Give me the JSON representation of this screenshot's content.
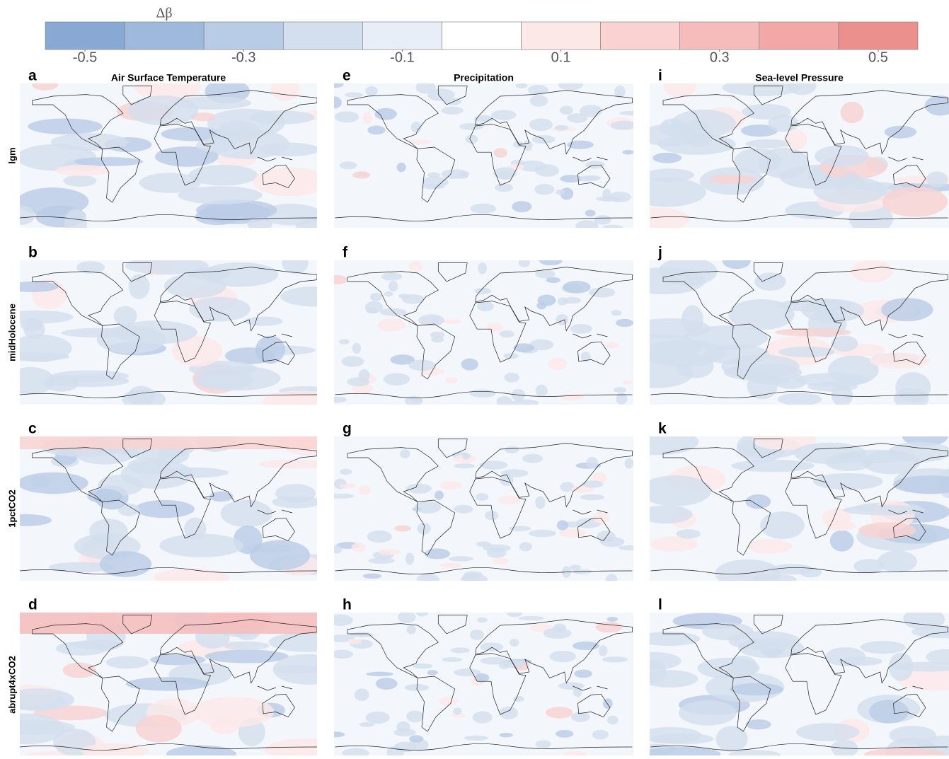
{
  "colorbar": {
    "label": "Δβ",
    "lim": [
      -0.55,
      0.55
    ],
    "ticks": [
      -0.5,
      -0.3,
      -0.1,
      0.1,
      0.3,
      0.5
    ],
    "colors": [
      "#88a9d3",
      "#9fb9dc",
      "#b9cce6",
      "#d3dfee",
      "#e8eef8",
      "#ffffff",
      "#fde8e8",
      "#f9d2d1",
      "#f5bcbb",
      "#f1a8a6",
      "#ec908e"
    ]
  },
  "columns": [
    "Air Surface Temperature",
    "Precipitation",
    "Sea-level Pressure"
  ],
  "rows": [
    "lgm",
    "midHolocene",
    "1pctCO2",
    "abrupt4xCO2"
  ],
  "panels": [
    [
      "a",
      "e",
      "i"
    ],
    [
      "b",
      "f",
      "j"
    ],
    [
      "c",
      "g",
      "k"
    ],
    [
      "d",
      "h",
      "l"
    ]
  ]
}
